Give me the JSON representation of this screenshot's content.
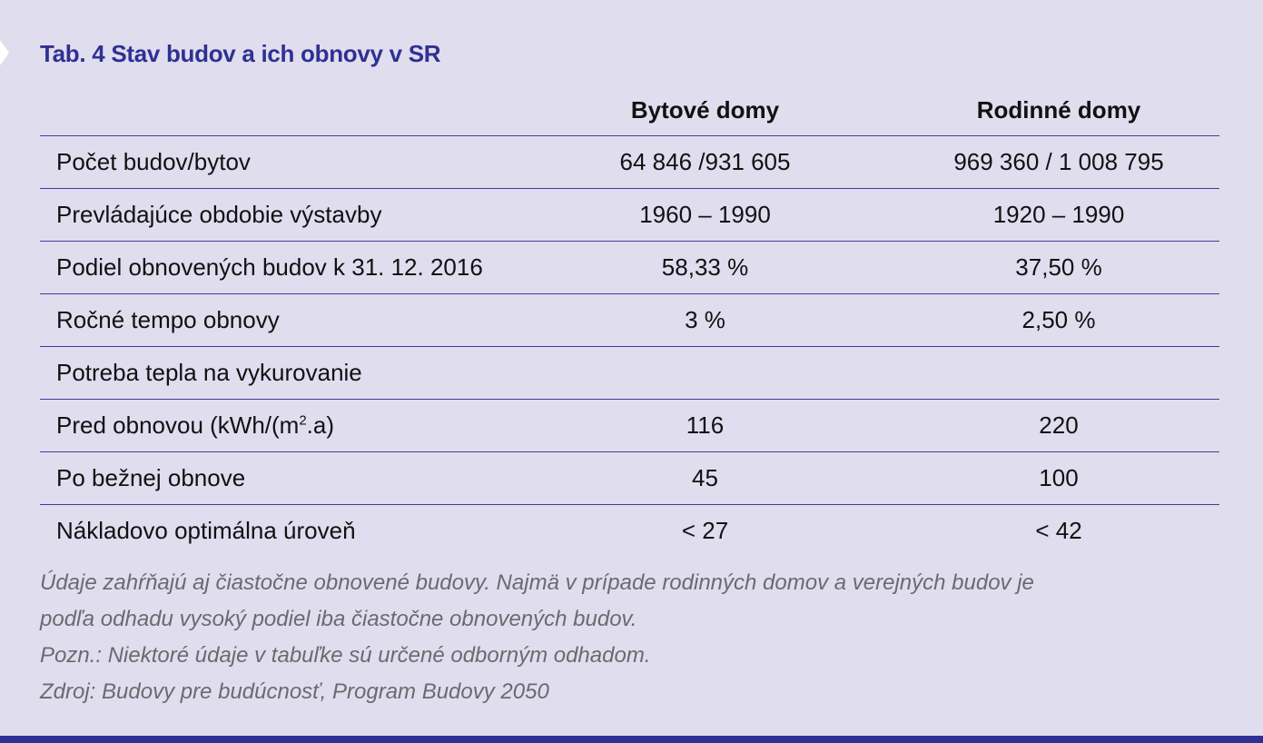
{
  "document": {
    "title": "Tab. 4 Stav budov a ich obnovy v SR",
    "accent_color": "#2e3192",
    "background_color": "#e0ddef"
  },
  "table": {
    "headers": [
      "",
      "Bytové domy",
      "Rodinné domy"
    ],
    "rows": [
      {
        "label": "Počet budov/bytov",
        "bytove": "64 846 /931 605",
        "rodinne": "969 360 / 1 008 795"
      },
      {
        "label": "Prevládajúce obdobie výstavby",
        "bytove": "1960 – 1990",
        "rodinne": "1920 – 1990"
      },
      {
        "label": "Podiel obnovených budov k 31. 12. 2016",
        "bytove": "58,33 %",
        "rodinne": "37,50 %"
      },
      {
        "label": "Ročné tempo obnovy",
        "bytove": "3 %",
        "rodinne": "2,50 %"
      },
      {
        "label": "Potreba tepla na vykurovanie",
        "bytove": "",
        "rodinne": ""
      },
      {
        "label_main": "Pred obnovou (kWh/(m",
        "label_sup": "2",
        "label_tail": ".a)",
        "bytove": "116",
        "rodinne": "220"
      },
      {
        "label": "Po bežnej obnove",
        "bytove": "45",
        "rodinne": "100"
      },
      {
        "label": "Nákladovo optimálna úroveň",
        "bytove": "<  27",
        "rodinne": "<  42"
      }
    ]
  },
  "notes": {
    "line1": "Údaje zahŕňajú aj čiastočne obnovené budovy. Najmä v prípade rodinných domov a verejných budov je",
    "line2": "podľa odhadu vysoký podiel iba čiastočne obnovených budov.",
    "line3": "Pozn.: Niektoré údaje v tabuľke sú určené odborným odhadom.",
    "line4": "Zdroj: Budovy pre budúcnosť, Program Budovy 2050"
  }
}
